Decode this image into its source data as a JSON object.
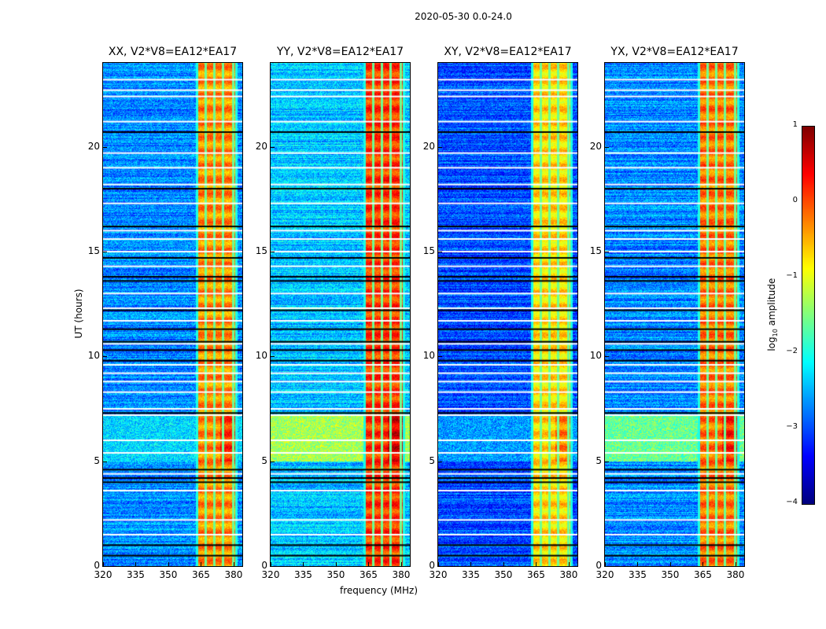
{
  "chart_data": {
    "type": "heatmap",
    "title": "2020-05-30 0.0-24.0",
    "xlabel": "frequency (MHz)",
    "ylabel": "UT (hours)",
    "xlim": [
      320,
      384
    ],
    "ylim": [
      0,
      24
    ],
    "xticks": [
      "320",
      "335",
      "350",
      "365",
      "380"
    ],
    "xtick_values": [
      320,
      335,
      350,
      365,
      380
    ],
    "yticks": [
      "0",
      "5",
      "10",
      "15",
      "20"
    ],
    "ytick_values": [
      0,
      5,
      10,
      15,
      20
    ],
    "colorbar": {
      "label_main": "log",
      "label_sub": "10",
      "label_rest": " amplitude",
      "range": [
        -4,
        1
      ],
      "ticks": [
        "1",
        "0",
        "−1",
        "−2",
        "−3",
        "−4"
      ],
      "tick_values": [
        1,
        0,
        -1,
        -2,
        -3,
        -4
      ],
      "colormap": "jet"
    },
    "panels": [
      {
        "title": "XX, V2*V8=EA12*EA17",
        "background": -2.7,
        "rfi_level": -0.3,
        "event_level": -2.3
      },
      {
        "title": "YY, V2*V8=EA12*EA17",
        "background": -2.4,
        "rfi_level": 0.1,
        "event_level": -1.3
      },
      {
        "title": "XY, V2*V8=EA12*EA17",
        "background": -3.0,
        "rfi_level": -0.7,
        "event_level": -2.6
      },
      {
        "title": "YX, V2*V8=EA12*EA17",
        "background": -2.7,
        "rfi_level": -0.2,
        "event_level": -1.6
      }
    ],
    "rfi_band_mhz": [
      363,
      381
    ],
    "rfi_gaps_mhz": [
      367,
      371,
      375,
      379.5
    ],
    "event_hours": [
      5.0,
      7.2
    ],
    "flagged_hours_white": [
      1.5,
      2.2,
      3.6,
      4.4,
      5.4,
      6.0,
      7.2,
      7.5,
      8.3,
      8.8,
      9.2,
      9.6,
      10.6,
      11.7,
      12.3,
      13.0,
      14.3,
      15.0,
      15.6,
      16.0,
      17.3,
      18.2,
      19.0,
      19.7,
      20.7,
      21.2,
      22.4,
      22.7,
      23.2
    ],
    "dropout_hours_black": [
      0.5,
      1.0,
      4.0,
      4.2,
      4.6,
      7.3,
      9.8,
      10.3,
      10.7,
      11.3,
      12.2,
      13.6,
      13.8,
      14.7,
      16.2,
      18.0,
      20.7
    ]
  }
}
